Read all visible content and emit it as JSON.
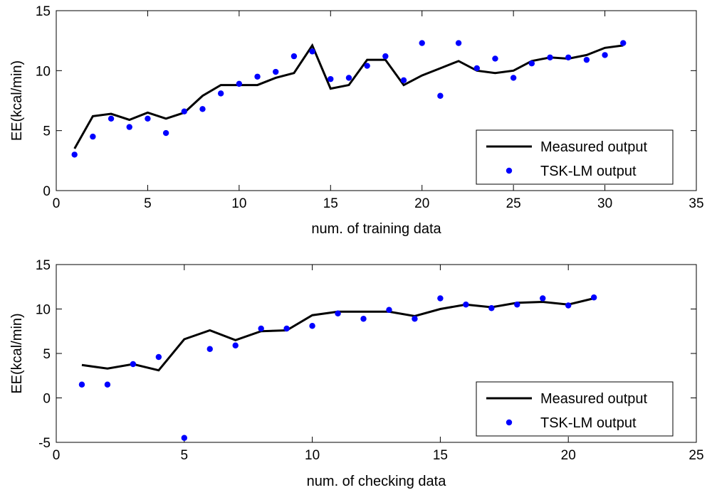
{
  "chart_data": [
    {
      "type": "line",
      "xlabel": "num. of training data",
      "ylabel": "EE(kcal/min)",
      "xlim": [
        0,
        35
      ],
      "ylim": [
        0,
        15
      ],
      "xticks": [
        0,
        5,
        10,
        15,
        20,
        25,
        30,
        35
      ],
      "yticks": [
        0,
        5,
        10,
        15
      ],
      "grid": false,
      "legend_position": "bottom-right",
      "series": [
        {
          "name": "Measured output",
          "style": "line",
          "color": "#000000",
          "x": [
            1,
            2,
            3,
            4,
            5,
            6,
            7,
            8,
            9,
            10,
            11,
            12,
            13,
            14,
            15,
            16,
            17,
            18,
            19,
            20,
            21,
            22,
            23,
            24,
            25,
            26,
            27,
            28,
            29,
            30,
            31
          ],
          "values": [
            3.5,
            6.2,
            6.4,
            5.9,
            6.5,
            6.0,
            6.5,
            7.9,
            8.8,
            8.8,
            8.8,
            9.4,
            9.8,
            12.1,
            8.5,
            8.8,
            10.9,
            10.9,
            8.8,
            9.6,
            10.2,
            10.8,
            10.0,
            9.8,
            10.0,
            10.8,
            11.1,
            11.0,
            11.3,
            11.9,
            12.1
          ]
        },
        {
          "name": "TSK-LM output",
          "style": "scatter",
          "color": "#0000ff",
          "x": [
            1,
            2,
            3,
            4,
            5,
            6,
            7,
            8,
            9,
            10,
            11,
            12,
            13,
            14,
            15,
            16,
            17,
            18,
            19,
            20,
            21,
            22,
            23,
            24,
            25,
            26,
            27,
            28,
            29,
            30,
            31
          ],
          "values": [
            3.0,
            4.5,
            6.0,
            5.3,
            6.0,
            4.8,
            6.6,
            6.8,
            8.1,
            8.9,
            9.5,
            9.9,
            11.2,
            11.6,
            9.3,
            9.4,
            10.4,
            11.2,
            9.2,
            12.3,
            7.9,
            12.3,
            10.2,
            11.0,
            9.4,
            10.6,
            11.1,
            11.1,
            10.9,
            11.3,
            12.3
          ]
        }
      ]
    },
    {
      "type": "line",
      "xlabel": "num. of checking data",
      "ylabel": "EE(kcal/min)",
      "xlim": [
        0,
        25
      ],
      "ylim": [
        -5,
        15
      ],
      "xticks": [
        0,
        5,
        10,
        15,
        20,
        25
      ],
      "yticks": [
        -5,
        0,
        5,
        10,
        15
      ],
      "grid": false,
      "legend_position": "bottom-right",
      "series": [
        {
          "name": "Measured output",
          "style": "line",
          "color": "#000000",
          "x": [
            1,
            2,
            3,
            4,
            5,
            6,
            7,
            8,
            9,
            10,
            11,
            12,
            13,
            14,
            15,
            16,
            17,
            18,
            19,
            20,
            21
          ],
          "values": [
            3.7,
            3.3,
            3.8,
            3.1,
            6.6,
            7.6,
            6.5,
            7.5,
            7.6,
            9.3,
            9.7,
            9.7,
            9.7,
            9.2,
            10.0,
            10.5,
            10.2,
            10.7,
            10.8,
            10.5,
            11.2
          ]
        },
        {
          "name": "TSK-LM output",
          "style": "scatter",
          "color": "#0000ff",
          "x": [
            1,
            2,
            3,
            4,
            5,
            6,
            7,
            8,
            9,
            10,
            11,
            12,
            13,
            14,
            15,
            16,
            17,
            18,
            19,
            20,
            21
          ],
          "values": [
            1.5,
            1.5,
            3.8,
            4.6,
            -4.5,
            5.5,
            5.9,
            7.8,
            7.8,
            8.1,
            9.5,
            8.9,
            9.9,
            8.9,
            11.2,
            10.5,
            10.1,
            10.5,
            11.2,
            10.4,
            11.3
          ]
        }
      ]
    }
  ]
}
